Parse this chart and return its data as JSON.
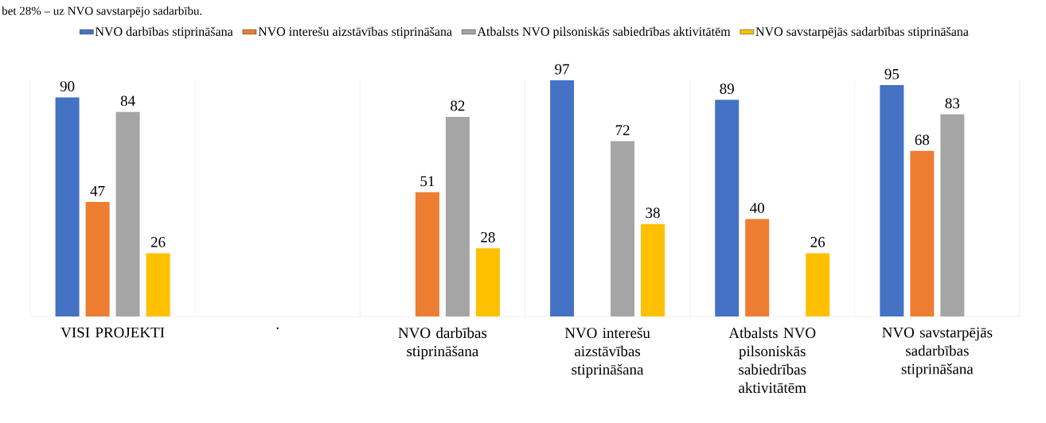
{
  "chart_data": {
    "type": "bar",
    "annotations": [
      "bet 28% – uz NVO savstarpējo sadarbību."
    ],
    "categories": [
      "VISI PROJEKTI",
      ".",
      "NVO darbības stiprināšana",
      "NVO interešu aizstāvības stiprināšana",
      "Atbalsts NVO pilsoniskās sabiedrības aktivitātēm",
      "NVO savstarpējās sadarbības stiprināšana"
    ],
    "series": [
      {
        "name": "NVO darbības stiprināšana",
        "color": "#4472c4",
        "values": [
          90,
          null,
          null,
          97,
          89,
          95
        ]
      },
      {
        "name": "NVO interešu aizstāvības stiprināšana",
        "color": "#ed7d31",
        "values": [
          47,
          null,
          51,
          null,
          40,
          68
        ]
      },
      {
        "name": "Atbalsts NVO pilsoniskās sabiedrības aktivitātēm",
        "color": "#a5a5a5",
        "values": [
          84,
          null,
          82,
          72,
          null,
          83
        ]
      },
      {
        "name": "NVO savstarpējās sadarbības stiprināšana",
        "color": "#ffc000",
        "values": [
          26,
          null,
          28,
          38,
          26,
          null
        ]
      }
    ],
    "data_labels": true,
    "legend": "top",
    "grid": "x"
  }
}
